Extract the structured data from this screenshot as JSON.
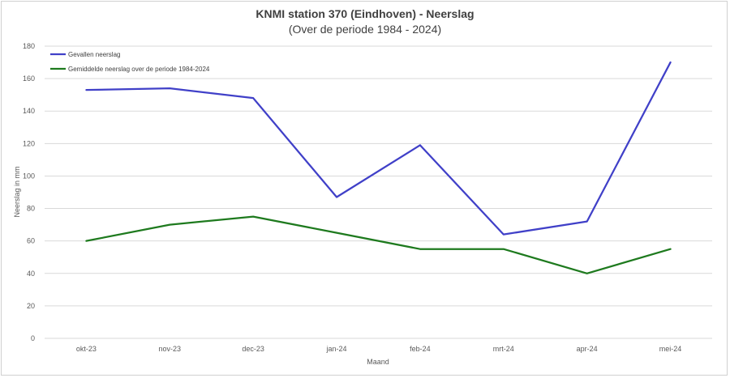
{
  "chart_data": {
    "type": "line",
    "title": "KNMI station 370 (Eindhoven) - Neerslag",
    "subtitle": "(Over de periode 1984 - 2024)",
    "xlabel": "Maand",
    "ylabel": "Neerslag in mm",
    "ylim": [
      0,
      180
    ],
    "yticks": [
      0,
      20,
      40,
      60,
      80,
      100,
      120,
      140,
      160,
      180
    ],
    "grid": true,
    "legend_position": "top-left",
    "categories": [
      "okt-23",
      "nov-23",
      "dec-23",
      "jan-24",
      "feb-24",
      "mrt-24",
      "apr-24",
      "mei-24"
    ],
    "series": [
      {
        "name": "Gevallen neerslag",
        "color": "#4040c8",
        "values": [
          153,
          154,
          148,
          87,
          119,
          64,
          72,
          170
        ]
      },
      {
        "name": "Gemiddelde neerslag over de periode 1984-2024",
        "color": "#1e7a1e",
        "values": [
          60,
          70,
          75,
          65,
          55,
          55,
          40,
          55
        ]
      }
    ]
  }
}
